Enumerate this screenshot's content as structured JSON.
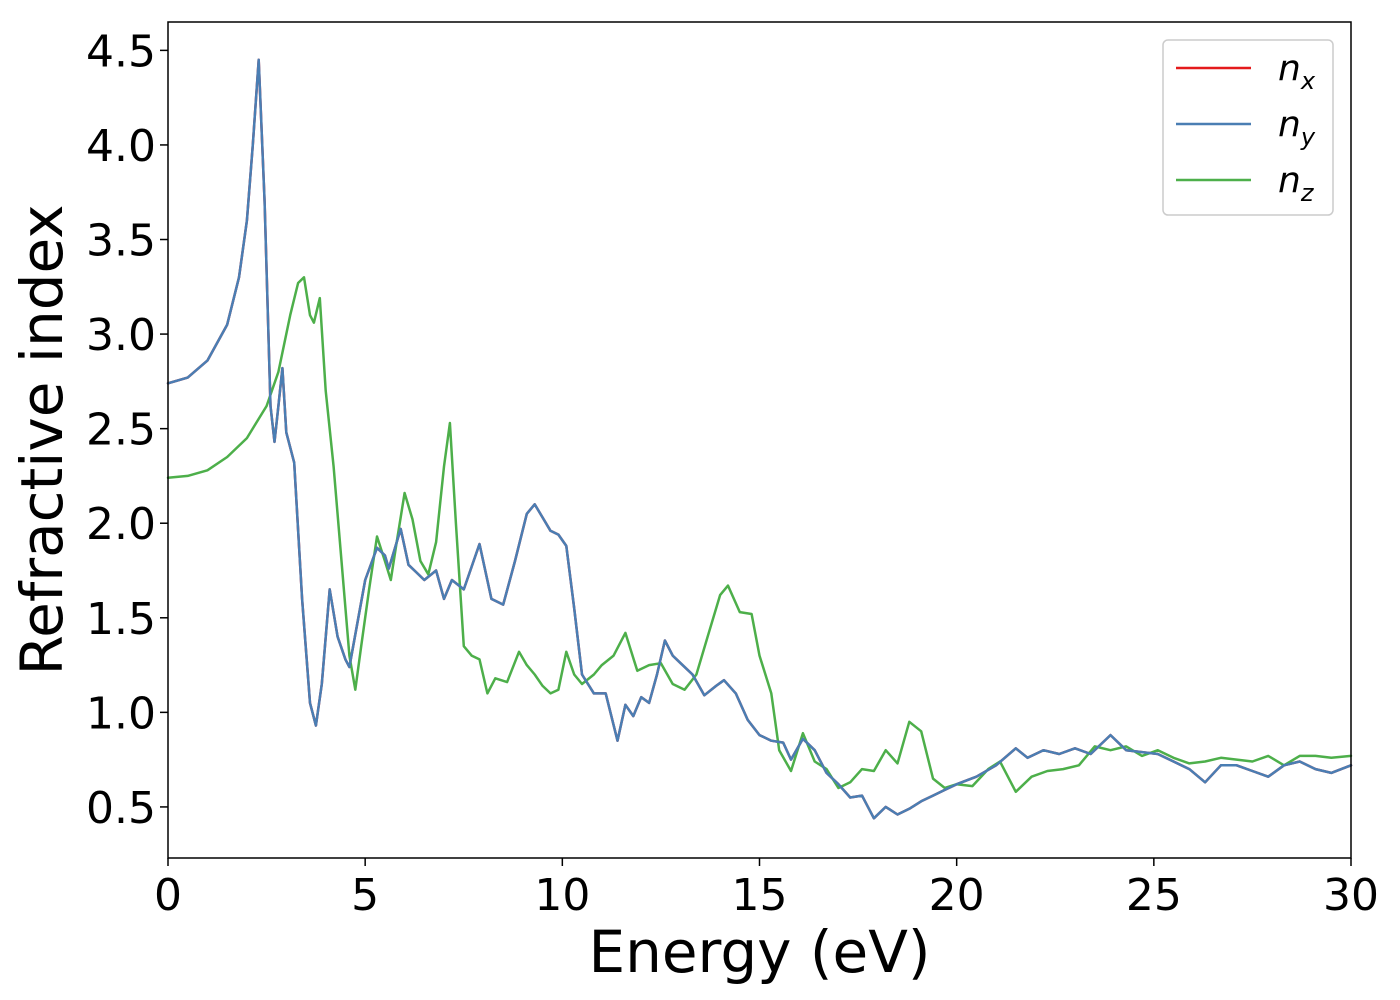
{
  "chart_data": {
    "type": "line",
    "title": "",
    "xlabel": "Energy (eV)",
    "ylabel": "Refractive index",
    "xlim": [
      0,
      30
    ],
    "ylim": [
      0.23,
      4.65
    ],
    "xticks": [
      0,
      5,
      10,
      15,
      20,
      25,
      30
    ],
    "yticks": [
      0.5,
      1.0,
      1.5,
      2.0,
      2.5,
      3.0,
      3.5,
      4.0,
      4.5
    ],
    "grid": false,
    "legend_position": "top-right",
    "colors": {
      "nx": "#e41a1c",
      "ny": "#4a7eb3",
      "nz": "#4daf4a"
    },
    "series": [
      {
        "name": "n_x",
        "legend_base": "n",
        "legend_sub": "x",
        "color": "#e41a1c",
        "x": [
          0,
          0.5,
          1.0,
          1.5,
          1.8,
          2.0,
          2.15,
          2.3,
          2.45,
          2.6,
          2.7,
          2.8,
          2.9,
          3.0,
          3.2,
          3.4,
          3.6,
          3.75,
          3.9,
          4.1,
          4.3,
          4.5,
          4.6,
          5.0,
          5.3,
          5.5,
          5.6,
          5.9,
          6.1,
          6.3,
          6.5,
          6.8,
          7.0,
          7.2,
          7.5,
          7.9,
          8.2,
          8.5,
          8.8,
          9.1,
          9.3,
          9.5,
          9.7,
          9.9,
          10.1,
          10.3,
          10.5,
          10.8,
          11.1,
          11.4,
          11.6,
          11.8,
          12.0,
          12.2,
          12.4,
          12.6,
          12.8,
          13.0,
          13.3,
          13.6,
          13.9,
          14.1,
          14.4,
          14.7,
          15.0,
          15.3,
          15.6,
          15.8,
          16.1,
          16.4,
          16.7,
          17.0,
          17.3,
          17.6,
          17.9,
          18.2,
          18.5,
          18.8,
          19.1,
          19.4,
          19.7,
          20.0,
          20.5,
          21.0,
          21.5,
          21.8,
          22.2,
          22.6,
          23.0,
          23.4,
          23.9,
          24.3,
          24.7,
          25.1,
          25.5,
          25.9,
          26.3,
          26.7,
          27.1,
          27.5,
          27.9,
          28.3,
          28.7,
          29.1,
          29.5,
          30.0
        ],
        "y": [
          2.74,
          2.77,
          2.86,
          3.05,
          3.3,
          3.6,
          4.0,
          4.45,
          3.7,
          2.62,
          2.43,
          2.62,
          2.82,
          2.48,
          2.32,
          1.6,
          1.05,
          0.93,
          1.15,
          1.65,
          1.4,
          1.28,
          1.24,
          1.7,
          1.87,
          1.83,
          1.76,
          1.97,
          1.78,
          1.74,
          1.7,
          1.75,
          1.6,
          1.7,
          1.65,
          1.89,
          1.6,
          1.57,
          1.8,
          2.05,
          2.1,
          2.03,
          1.96,
          1.94,
          1.88,
          1.55,
          1.2,
          1.1,
          1.1,
          0.85,
          1.04,
          0.98,
          1.08,
          1.05,
          1.2,
          1.38,
          1.3,
          1.26,
          1.2,
          1.09,
          1.14,
          1.17,
          1.1,
          0.96,
          0.88,
          0.85,
          0.84,
          0.75,
          0.86,
          0.8,
          0.68,
          0.62,
          0.55,
          0.56,
          0.44,
          0.5,
          0.46,
          0.49,
          0.53,
          0.56,
          0.59,
          0.62,
          0.66,
          0.72,
          0.81,
          0.76,
          0.8,
          0.78,
          0.81,
          0.78,
          0.88,
          0.8,
          0.79,
          0.78,
          0.74,
          0.7,
          0.63,
          0.72,
          0.72,
          0.69,
          0.66,
          0.72,
          0.74,
          0.7,
          0.68,
          0.72
        ]
      },
      {
        "name": "n_y",
        "legend_base": "n",
        "legend_sub": "y",
        "color": "#4a7eb3",
        "x": [
          0,
          0.5,
          1.0,
          1.5,
          1.8,
          2.0,
          2.15,
          2.3,
          2.45,
          2.6,
          2.7,
          2.8,
          2.9,
          3.0,
          3.2,
          3.4,
          3.6,
          3.75,
          3.9,
          4.1,
          4.3,
          4.5,
          4.6,
          5.0,
          5.3,
          5.5,
          5.6,
          5.9,
          6.1,
          6.3,
          6.5,
          6.8,
          7.0,
          7.2,
          7.5,
          7.9,
          8.2,
          8.5,
          8.8,
          9.1,
          9.3,
          9.5,
          9.7,
          9.9,
          10.1,
          10.3,
          10.5,
          10.8,
          11.1,
          11.4,
          11.6,
          11.8,
          12.0,
          12.2,
          12.4,
          12.6,
          12.8,
          13.0,
          13.3,
          13.6,
          13.9,
          14.1,
          14.4,
          14.7,
          15.0,
          15.3,
          15.6,
          15.8,
          16.1,
          16.4,
          16.7,
          17.0,
          17.3,
          17.6,
          17.9,
          18.2,
          18.5,
          18.8,
          19.1,
          19.4,
          19.7,
          20.0,
          20.5,
          21.0,
          21.5,
          21.8,
          22.2,
          22.6,
          23.0,
          23.4,
          23.9,
          24.3,
          24.7,
          25.1,
          25.5,
          25.9,
          26.3,
          26.7,
          27.1,
          27.5,
          27.9,
          28.3,
          28.7,
          29.1,
          29.5,
          30.0
        ],
        "y": [
          2.74,
          2.77,
          2.86,
          3.05,
          3.3,
          3.6,
          4.0,
          4.45,
          3.7,
          2.62,
          2.43,
          2.62,
          2.82,
          2.48,
          2.32,
          1.6,
          1.05,
          0.93,
          1.15,
          1.65,
          1.4,
          1.28,
          1.24,
          1.7,
          1.87,
          1.83,
          1.76,
          1.97,
          1.78,
          1.74,
          1.7,
          1.75,
          1.6,
          1.7,
          1.65,
          1.89,
          1.6,
          1.57,
          1.8,
          2.05,
          2.1,
          2.03,
          1.96,
          1.94,
          1.88,
          1.55,
          1.2,
          1.1,
          1.1,
          0.85,
          1.04,
          0.98,
          1.08,
          1.05,
          1.2,
          1.38,
          1.3,
          1.26,
          1.2,
          1.09,
          1.14,
          1.17,
          1.1,
          0.96,
          0.88,
          0.85,
          0.84,
          0.75,
          0.86,
          0.8,
          0.68,
          0.62,
          0.55,
          0.56,
          0.44,
          0.5,
          0.46,
          0.49,
          0.53,
          0.56,
          0.59,
          0.62,
          0.66,
          0.72,
          0.81,
          0.76,
          0.8,
          0.78,
          0.81,
          0.78,
          0.88,
          0.8,
          0.79,
          0.78,
          0.74,
          0.7,
          0.63,
          0.72,
          0.72,
          0.69,
          0.66,
          0.72,
          0.74,
          0.7,
          0.68,
          0.72
        ]
      },
      {
        "name": "n_z",
        "legend_base": "n",
        "legend_sub": "z",
        "color": "#4daf4a",
        "x": [
          0,
          0.5,
          1.0,
          1.5,
          2.0,
          2.5,
          2.8,
          3.1,
          3.3,
          3.45,
          3.6,
          3.7,
          3.85,
          4.0,
          4.2,
          4.4,
          4.6,
          4.75,
          4.9,
          5.1,
          5.3,
          5.5,
          5.65,
          5.8,
          6.0,
          6.2,
          6.4,
          6.6,
          6.8,
          7.0,
          7.15,
          7.3,
          7.5,
          7.7,
          7.9,
          8.1,
          8.3,
          8.6,
          8.9,
          9.1,
          9.3,
          9.5,
          9.7,
          9.9,
          10.1,
          10.3,
          10.5,
          10.8,
          11.0,
          11.3,
          11.6,
          11.9,
          12.2,
          12.5,
          12.8,
          13.1,
          13.4,
          13.7,
          14.0,
          14.2,
          14.5,
          14.8,
          15.0,
          15.3,
          15.5,
          15.8,
          16.1,
          16.4,
          16.7,
          17.0,
          17.3,
          17.6,
          17.9,
          18.2,
          18.5,
          18.8,
          19.1,
          19.4,
          19.7,
          20.0,
          20.4,
          20.8,
          21.1,
          21.5,
          21.9,
          22.3,
          22.7,
          23.1,
          23.5,
          23.9,
          24.3,
          24.7,
          25.1,
          25.5,
          25.9,
          26.3,
          26.7,
          27.1,
          27.5,
          27.9,
          28.3,
          28.7,
          29.1,
          29.5,
          30.0
        ],
        "y": [
          2.24,
          2.25,
          2.28,
          2.35,
          2.45,
          2.62,
          2.8,
          3.1,
          3.27,
          3.3,
          3.1,
          3.06,
          3.19,
          2.7,
          2.3,
          1.8,
          1.3,
          1.12,
          1.35,
          1.65,
          1.93,
          1.8,
          1.7,
          1.9,
          2.16,
          2.02,
          1.8,
          1.73,
          1.9,
          2.3,
          2.53,
          2.0,
          1.35,
          1.3,
          1.28,
          1.1,
          1.18,
          1.16,
          1.32,
          1.25,
          1.2,
          1.14,
          1.1,
          1.12,
          1.32,
          1.2,
          1.15,
          1.2,
          1.25,
          1.3,
          1.42,
          1.22,
          1.25,
          1.26,
          1.15,
          1.12,
          1.2,
          1.41,
          1.62,
          1.67,
          1.53,
          1.52,
          1.3,
          1.1,
          0.8,
          0.69,
          0.89,
          0.74,
          0.7,
          0.6,
          0.63,
          0.7,
          0.69,
          0.8,
          0.73,
          0.95,
          0.9,
          0.65,
          0.6,
          0.62,
          0.61,
          0.7,
          0.74,
          0.58,
          0.66,
          0.69,
          0.7,
          0.72,
          0.82,
          0.8,
          0.82,
          0.77,
          0.8,
          0.76,
          0.73,
          0.74,
          0.76,
          0.75,
          0.74,
          0.77,
          0.72,
          0.77,
          0.77,
          0.76,
          0.77
        ]
      }
    ]
  }
}
